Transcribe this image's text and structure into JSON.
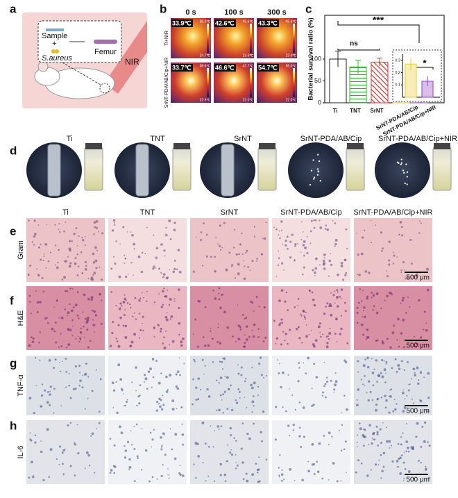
{
  "panel_labels": [
    "a",
    "b",
    "c",
    "d",
    "e",
    "f",
    "g",
    "h"
  ],
  "panel_a": {
    "sample": "Sample",
    "plus": "+",
    "bacteria": "S.aureus",
    "femur": "Femur",
    "nir": "NIR"
  },
  "panel_b": {
    "times": [
      "0 s",
      "100 s",
      "300 s"
    ],
    "rows": [
      {
        "label": "Ti+NIR",
        "temps": [
          "33.9℃",
          "42.6℃",
          "43.3℃"
        ],
        "scale_max": [
          "38.0℃",
          "45.6℃",
          "45.6℃"
        ],
        "scale_min": [
          "24.7℃",
          "23.6℃",
          "23.0℃"
        ]
      },
      {
        "label": "SrNT-PDA/AB/Cip+NIR",
        "temps": [
          "33.7℃",
          "46.6℃",
          "54.7℃"
        ],
        "scale_max": [
          "38.6℃",
          "47.7℃",
          "55.0℃"
        ],
        "scale_min": [
          "22.5℃",
          "22.0℃",
          "22.0℃"
        ]
      }
    ]
  },
  "chart_data": {
    "type": "bar",
    "ylabel": "Bacterial survival ratio (%)",
    "categories": [
      "Ti",
      "TNT",
      "SrNT",
      "SrNT-PDA/AB/Cip",
      "SrNT-PDA/AB/Cip+NIR"
    ],
    "values": [
      100,
      82,
      93,
      0.27,
      0.13
    ],
    "errors": [
      18,
      15,
      9,
      0.05,
      0.04
    ],
    "colors": [
      "#222222",
      "#2db52d",
      "#d9302c",
      "#e9cc2e",
      "#8e44c7"
    ],
    "ylim": [
      0,
      200
    ],
    "yticks": [
      0,
      50,
      100
    ],
    "annotations": [
      "***",
      "ns",
      "*"
    ],
    "inset": {
      "ylim": [
        0,
        0.35
      ],
      "yticks": [
        0.1,
        0.2,
        0.3
      ]
    }
  },
  "panel_d": {
    "groups": [
      "Ti",
      "TNT",
      "SrNT",
      "SrNT-PDA/AB/Cip",
      "SrNT-PDA/AB/Cip+NIR"
    ]
  },
  "histology": {
    "groups": [
      "Ti",
      "TNT",
      "SrNT",
      "SrNT-PDA/AB/Cip",
      "SrNT-PDA/AB/Cip+NIR"
    ],
    "stains": [
      "Gram",
      "H&E",
      "TNF-α",
      "IL-6"
    ],
    "scale_bar": "500 μm"
  }
}
